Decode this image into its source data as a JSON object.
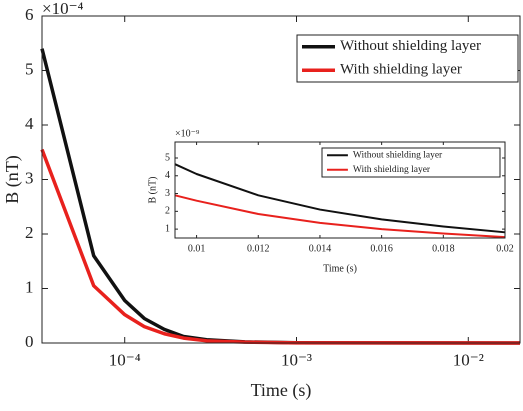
{
  "chart_data": [
    {
      "type": "line",
      "xscale": "log",
      "x_label": "Time (s)",
      "y_label": "B (nT)",
      "y_exponent_label": "×10⁻⁴",
      "xlim": [
        3.3e-05,
        0.02
      ],
      "ylim": [
        0,
        6
      ],
      "xticks": [
        {
          "value": 0.0001,
          "label": "10⁻⁴"
        },
        {
          "value": 0.001,
          "label": "10⁻³"
        },
        {
          "value": 0.01,
          "label": "10⁻²"
        }
      ],
      "yticks": [
        0,
        1,
        2,
        3,
        4,
        5,
        6
      ],
      "legend": "northeast",
      "x": [
        3.3e-05,
        6.6e-05,
        0.0001,
        0.00013,
        0.00017,
        0.00022,
        0.0003,
        0.0005,
        0.001,
        0.02
      ],
      "series": [
        {
          "name": "Without shielding layer",
          "color": "#111111",
          "values": [
            5.4,
            1.6,
            0.78,
            0.45,
            0.25,
            0.12,
            0.06,
            0.02,
            0.005,
            0
          ]
        },
        {
          "name": "With shielding layer",
          "color": "#e8211d",
          "values": [
            3.55,
            1.05,
            0.52,
            0.3,
            0.17,
            0.09,
            0.04,
            0.015,
            0.003,
            0
          ]
        }
      ]
    },
    {
      "type": "line",
      "xscale": "linear",
      "x_label": "Time (s)",
      "y_label": "B (nT)",
      "y_exponent_label": "×10⁻⁹",
      "xlim": [
        0.0093,
        0.02
      ],
      "ylim": [
        0.5,
        5.9
      ],
      "xticks": [
        0.01,
        0.012,
        0.014,
        0.016,
        0.018,
        0.02
      ],
      "yticks": [
        1,
        2,
        3,
        4,
        5
      ],
      "legend": "northeast",
      "x": [
        0.0093,
        0.01,
        0.012,
        0.014,
        0.016,
        0.018,
        0.02
      ],
      "series": [
        {
          "name": "Without shielding layer",
          "color": "#111111",
          "values": [
            4.65,
            4.1,
            2.9,
            2.1,
            1.55,
            1.15,
            0.82
          ]
        },
        {
          "name": "With shielding layer",
          "color": "#e8211d",
          "values": [
            2.9,
            2.6,
            1.85,
            1.35,
            1.0,
            0.75,
            0.55
          ]
        }
      ]
    }
  ]
}
